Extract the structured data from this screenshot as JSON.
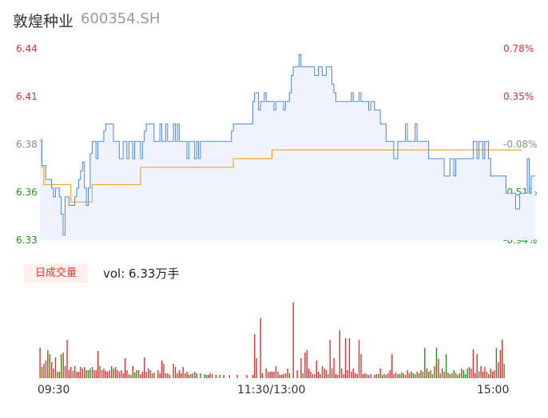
{
  "header": {
    "name": "敦煌种业",
    "code": "600354.SH"
  },
  "price_axis": [
    {
      "price": "6.44",
      "pct": "0.78%",
      "dir": "up"
    },
    {
      "price": "6.41",
      "pct": "0.35%",
      "dir": "up"
    },
    {
      "price": "6.38",
      "pct": "-0.08%",
      "dir": "flat"
    },
    {
      "price": "6.36",
      "pct": "-0.51%",
      "dir": "down"
    },
    {
      "price": "6.33",
      "pct": "-0.94%",
      "dir": "down"
    }
  ],
  "volume": {
    "tag": "日成交量",
    "text": "vol: 6.33万手"
  },
  "time_axis": [
    "09:30",
    "11:30/13:00",
    "15:00"
  ],
  "colors": {
    "price_line": "#4d86e8",
    "avg_line": "#f0a82a",
    "up": "#e03131",
    "down": "#1a9b1a",
    "area": "#eef3fd"
  },
  "chart_data": {
    "type": "line",
    "ylim": [
      6.33,
      6.44
    ],
    "x_points": 241,
    "price_series": [
      6.387,
      6.373,
      6.373,
      6.365,
      6.365,
      6.365,
      6.36,
      6.355,
      6.36,
      6.36,
      6.355,
      6.345,
      6.333,
      6.355,
      6.355,
      6.35,
      6.35,
      6.35,
      6.355,
      6.36,
      6.365,
      6.37,
      6.375,
      6.36,
      6.35,
      6.36,
      6.38,
      6.387,
      6.387,
      6.377,
      6.387,
      6.387,
      6.387,
      6.393,
      6.397,
      6.397,
      6.397,
      6.397,
      6.387,
      6.387,
      6.387,
      6.377,
      6.377,
      6.387,
      6.387,
      6.377,
      6.387,
      6.387,
      6.377,
      6.387,
      6.387,
      6.387,
      6.377,
      6.387,
      6.393,
      6.397,
      6.397,
      6.397,
      6.397,
      6.387,
      6.387,
      6.387,
      6.397,
      6.387,
      6.387,
      6.397,
      6.387,
      6.387,
      6.387,
      6.397,
      6.387,
      6.397,
      6.387,
      6.387,
      6.387,
      6.387,
      6.377,
      6.387,
      6.387,
      6.387,
      6.377,
      6.387,
      6.377,
      6.387,
      6.387,
      6.387,
      6.387,
      6.387,
      6.387,
      6.387,
      6.387,
      6.387,
      6.387,
      6.387,
      6.387,
      6.387,
      6.387,
      6.387,
      6.387,
      6.393,
      6.397,
      6.397,
      6.397,
      6.397,
      6.397,
      6.397,
      6.397,
      6.397,
      6.397,
      6.397,
      6.41,
      6.415,
      6.415,
      6.405,
      6.41,
      6.41,
      6.415,
      6.41,
      6.41,
      6.41,
      6.41,
      6.405,
      6.41,
      6.41,
      6.41,
      6.41,
      6.405,
      6.41,
      6.41,
      6.415,
      6.425,
      6.43,
      6.43,
      6.43,
      6.437,
      6.43,
      6.43,
      6.43,
      6.43,
      6.43,
      6.43,
      6.43,
      6.425,
      6.425,
      6.43,
      6.43,
      6.425,
      6.425,
      6.43,
      6.43,
      6.43,
      6.42,
      6.415,
      6.41,
      6.41,
      6.41,
      6.41,
      6.41,
      6.41,
      6.41,
      6.41,
      6.415,
      6.41,
      6.41,
      6.41,
      6.415,
      6.41,
      6.41,
      6.41,
      6.41,
      6.405,
      6.41,
      6.41,
      6.405,
      6.405,
      6.405,
      6.397,
      6.397,
      6.397,
      6.387,
      6.387,
      6.387,
      6.387,
      6.377,
      6.377,
      6.387,
      6.387,
      6.387,
      6.387,
      6.397,
      6.387,
      6.387,
      6.387,
      6.387,
      6.397,
      6.387,
      6.387,
      6.387,
      6.387,
      6.387,
      6.387,
      6.377,
      6.377,
      6.377,
      6.377,
      6.377,
      6.377,
      6.377,
      6.377,
      6.367,
      6.367,
      6.367,
      6.377,
      6.377,
      6.367,
      6.377,
      6.377,
      6.377,
      6.377,
      6.377,
      6.377,
      6.377,
      6.377,
      6.377,
      6.387,
      6.387,
      6.377,
      6.387,
      6.387,
      6.377,
      6.387,
      6.387,
      6.377,
      6.367,
      6.367,
      6.367,
      6.367,
      6.367,
      6.367,
      6.367,
      6.367,
      6.357,
      6.357,
      6.357,
      6.357,
      6.357,
      6.348,
      6.348,
      6.357,
      6.357,
      6.357,
      6.357,
      6.377,
      6.357,
      6.367,
      6.367,
      6.367
    ],
    "avg_series": [
      6.388,
      6.372,
      6.362,
      6.362,
      6.362,
      6.362,
      6.362,
      6.362,
      6.362,
      6.362,
      6.362,
      6.362,
      6.362,
      6.362,
      6.362,
      6.362,
      6.352,
      6.352,
      6.352,
      6.352,
      6.352,
      6.352,
      6.352,
      6.352,
      6.352,
      6.352,
      6.352,
      6.362,
      6.362,
      6.362,
      6.362,
      6.362,
      6.362,
      6.362,
      6.362,
      6.362,
      6.362,
      6.362,
      6.362,
      6.362,
      6.362,
      6.362,
      6.362,
      6.362,
      6.362,
      6.362,
      6.362,
      6.362,
      6.362,
      6.362,
      6.362,
      6.362,
      6.372,
      6.372,
      6.372,
      6.372,
      6.372,
      6.372,
      6.372,
      6.372,
      6.372,
      6.372,
      6.372,
      6.372,
      6.372,
      6.372,
      6.372,
      6.372,
      6.372,
      6.372,
      6.372,
      6.372,
      6.372,
      6.372,
      6.372,
      6.372,
      6.372,
      6.372,
      6.372,
      6.372,
      6.372,
      6.372,
      6.372,
      6.372,
      6.372,
      6.372,
      6.372,
      6.372,
      6.372,
      6.372,
      6.372,
      6.372,
      6.372,
      6.372,
      6.372,
      6.372,
      6.372,
      6.372,
      6.372,
      6.372,
      6.377,
      6.377,
      6.377,
      6.377,
      6.377,
      6.377,
      6.377,
      6.377,
      6.377,
      6.377,
      6.377,
      6.377,
      6.377,
      6.377,
      6.377,
      6.377,
      6.377,
      6.377,
      6.377,
      6.377,
      6.382,
      6.382,
      6.382,
      6.382,
      6.382,
      6.382,
      6.382,
      6.382,
      6.382,
      6.382,
      6.382,
      6.382,
      6.382,
      6.382,
      6.382,
      6.382,
      6.382,
      6.382,
      6.382,
      6.382,
      6.382,
      6.382,
      6.382,
      6.382,
      6.382,
      6.382,
      6.382,
      6.382,
      6.382,
      6.382,
      6.382,
      6.382,
      6.382,
      6.382,
      6.382,
      6.382,
      6.382,
      6.382,
      6.382,
      6.382,
      6.382,
      6.382,
      6.382,
      6.382,
      6.382,
      6.382,
      6.382,
      6.382,
      6.382,
      6.382,
      6.382,
      6.382,
      6.382,
      6.382,
      6.382,
      6.382,
      6.382,
      6.382,
      6.382,
      6.382,
      6.382,
      6.382,
      6.382,
      6.382,
      6.382,
      6.382,
      6.382,
      6.382,
      6.382,
      6.382,
      6.382,
      6.382,
      6.382,
      6.382,
      6.382,
      6.382,
      6.382,
      6.382,
      6.382,
      6.382,
      6.382,
      6.382,
      6.382,
      6.382,
      6.382,
      6.382,
      6.382,
      6.382,
      6.382,
      6.382,
      6.382,
      6.382,
      6.382,
      6.382,
      6.382,
      6.382,
      6.382,
      6.382,
      6.382,
      6.382,
      6.382,
      6.382,
      6.382,
      6.382,
      6.382,
      6.382,
      6.382,
      6.382,
      6.382,
      6.382,
      6.382,
      6.382,
      6.382,
      6.382,
      6.382,
      6.382,
      6.382,
      6.382,
      6.382,
      6.382,
      6.382,
      6.382,
      6.382,
      6.382,
      6.382,
      6.382,
      6.382,
      6.382,
      6.382,
      6.382
    ],
    "volume_bars": [
      [
        0,
        38,
        "up"
      ],
      [
        2,
        18,
        "up"
      ],
      [
        3,
        22,
        "up"
      ],
      [
        4,
        35,
        "up"
      ],
      [
        5,
        30,
        "down"
      ],
      [
        6,
        20,
        "up"
      ],
      [
        7,
        12,
        "up"
      ],
      [
        8,
        26,
        "up"
      ],
      [
        10,
        8,
        "up"
      ],
      [
        11,
        30,
        "down"
      ],
      [
        12,
        32,
        "up"
      ],
      [
        13,
        15,
        "up"
      ],
      [
        14,
        48,
        "up"
      ],
      [
        15,
        10,
        "up"
      ],
      [
        16,
        14,
        "up"
      ],
      [
        18,
        15,
        "up"
      ],
      [
        19,
        8,
        "up"
      ],
      [
        20,
        8,
        "up"
      ],
      [
        21,
        14,
        "up"
      ],
      [
        22,
        12,
        "up"
      ],
      [
        23,
        14,
        "up"
      ],
      [
        24,
        10,
        "up"
      ],
      [
        25,
        10,
        "down"
      ],
      [
        27,
        14,
        "up"
      ],
      [
        28,
        10,
        "up"
      ],
      [
        29,
        10,
        "up"
      ],
      [
        30,
        34,
        "up"
      ],
      [
        31,
        15,
        "up"
      ],
      [
        32,
        10,
        "up"
      ],
      [
        33,
        12,
        "up"
      ],
      [
        34,
        9,
        "up"
      ],
      [
        35,
        8,
        "up"
      ],
      [
        36,
        10,
        "up"
      ],
      [
        37,
        15,
        "up"
      ],
      [
        38,
        12,
        "down"
      ],
      [
        39,
        14,
        "up"
      ],
      [
        40,
        10,
        "up"
      ],
      [
        41,
        8,
        "up"
      ],
      [
        42,
        10,
        "up"
      ],
      [
        43,
        6,
        "up"
      ],
      [
        44,
        25,
        "up"
      ],
      [
        45,
        10,
        "up"
      ],
      [
        46,
        5,
        "up"
      ],
      [
        47,
        4,
        "down"
      ],
      [
        48,
        15,
        "up"
      ],
      [
        50,
        10,
        "up"
      ],
      [
        51,
        10,
        "down"
      ],
      [
        52,
        5,
        "up"
      ],
      [
        53,
        8,
        "up"
      ],
      [
        54,
        26,
        "up"
      ],
      [
        55,
        8,
        "up"
      ],
      [
        56,
        12,
        "up"
      ],
      [
        57,
        10,
        "up"
      ],
      [
        59,
        7,
        "up"
      ],
      [
        61,
        10,
        "up"
      ],
      [
        62,
        6,
        "up"
      ],
      [
        63,
        22,
        "up"
      ],
      [
        64,
        18,
        "up"
      ],
      [
        65,
        6,
        "up"
      ],
      [
        67,
        4,
        "up"
      ],
      [
        69,
        18,
        "up"
      ],
      [
        70,
        14,
        "down"
      ],
      [
        71,
        6,
        "up"
      ],
      [
        72,
        10,
        "up"
      ],
      [
        73,
        6,
        "up"
      ],
      [
        74,
        14,
        "up"
      ],
      [
        75,
        6,
        "up"
      ],
      [
        76,
        8,
        "up"
      ],
      [
        77,
        4,
        "up"
      ],
      [
        79,
        6,
        "up"
      ],
      [
        80,
        8,
        "up"
      ],
      [
        83,
        6,
        "up"
      ],
      [
        85,
        5,
        "down"
      ],
      [
        87,
        4,
        "up"
      ],
      [
        88,
        6,
        "up"
      ],
      [
        89,
        5,
        "up"
      ],
      [
        91,
        4,
        "up"
      ],
      [
        93,
        4,
        "up"
      ],
      [
        95,
        4,
        "up"
      ],
      [
        98,
        4,
        "up"
      ],
      [
        102,
        4,
        "up"
      ],
      [
        107,
        4,
        "up"
      ],
      [
        110,
        4,
        "up"
      ],
      [
        111,
        55,
        "up"
      ],
      [
        112,
        25,
        "up"
      ],
      [
        114,
        75,
        "up"
      ],
      [
        115,
        6,
        "up"
      ],
      [
        117,
        12,
        "up"
      ],
      [
        118,
        8,
        "up"
      ],
      [
        119,
        8,
        "up"
      ],
      [
        120,
        8,
        "up"
      ],
      [
        121,
        8,
        "up"
      ],
      [
        122,
        15,
        "up"
      ],
      [
        123,
        8,
        "up"
      ],
      [
        124,
        4,
        "up"
      ],
      [
        125,
        4,
        "up"
      ],
      [
        126,
        5,
        "up"
      ],
      [
        127,
        6,
        "up"
      ],
      [
        128,
        12,
        "up"
      ],
      [
        131,
        95,
        "up"
      ],
      [
        133,
        10,
        "up"
      ],
      [
        135,
        25,
        "up"
      ],
      [
        136,
        6,
        "down"
      ],
      [
        137,
        32,
        "up"
      ],
      [
        138,
        35,
        "up"
      ],
      [
        139,
        12,
        "up"
      ],
      [
        140,
        8,
        "up"
      ],
      [
        141,
        5,
        "up"
      ],
      [
        142,
        5,
        "up"
      ],
      [
        143,
        22,
        "up"
      ],
      [
        144,
        8,
        "up"
      ],
      [
        145,
        5,
        "up"
      ],
      [
        146,
        15,
        "up"
      ],
      [
        147,
        12,
        "up"
      ],
      [
        148,
        10,
        "up"
      ],
      [
        150,
        48,
        "up"
      ],
      [
        151,
        12,
        "up"
      ],
      [
        152,
        25,
        "up"
      ],
      [
        153,
        5,
        "up"
      ],
      [
        154,
        4,
        "up"
      ],
      [
        155,
        60,
        "up"
      ],
      [
        156,
        12,
        "up"
      ],
      [
        157,
        5,
        "up"
      ],
      [
        158,
        50,
        "up"
      ],
      [
        159,
        10,
        "up"
      ],
      [
        160,
        50,
        "up"
      ],
      [
        161,
        8,
        "up"
      ],
      [
        162,
        12,
        "up"
      ],
      [
        163,
        6,
        "up"
      ],
      [
        164,
        5,
        "up"
      ],
      [
        165,
        48,
        "up"
      ],
      [
        166,
        30,
        "up"
      ],
      [
        167,
        5,
        "up"
      ],
      [
        168,
        6,
        "up"
      ],
      [
        170,
        4,
        "up"
      ],
      [
        171,
        5,
        "up"
      ],
      [
        173,
        4,
        "up"
      ],
      [
        174,
        5,
        "up"
      ],
      [
        175,
        5,
        "down"
      ],
      [
        176,
        12,
        "up"
      ],
      [
        178,
        5,
        "up"
      ],
      [
        179,
        4,
        "up"
      ],
      [
        180,
        6,
        "up"
      ],
      [
        181,
        10,
        "up"
      ],
      [
        182,
        30,
        "up"
      ],
      [
        183,
        5,
        "up"
      ],
      [
        184,
        7,
        "up"
      ],
      [
        186,
        5,
        "up"
      ],
      [
        188,
        6,
        "up"
      ],
      [
        189,
        4,
        "up"
      ],
      [
        190,
        10,
        "up"
      ],
      [
        191,
        6,
        "up"
      ],
      [
        193,
        6,
        "up"
      ],
      [
        195,
        8,
        "up"
      ],
      [
        197,
        10,
        "up"
      ],
      [
        198,
        8,
        "up"
      ],
      [
        200,
        12,
        "up"
      ],
      [
        202,
        10,
        "up"
      ],
      [
        204,
        15,
        "up"
      ],
      [
        206,
        24,
        "up"
      ],
      [
        208,
        12,
        "up"
      ],
      [
        209,
        8,
        "up"
      ],
      [
        211,
        7,
        "up"
      ],
      [
        213,
        6,
        "up"
      ],
      [
        215,
        6,
        "up"
      ],
      [
        218,
        12,
        "up"
      ],
      [
        220,
        5,
        "down"
      ],
      [
        222,
        14,
        "up"
      ],
      [
        223,
        12,
        "up"
      ],
      [
        224,
        36,
        "up"
      ],
      [
        225,
        6,
        "up"
      ],
      [
        226,
        30,
        "up"
      ],
      [
        228,
        15,
        "up"
      ],
      [
        229,
        8,
        "up"
      ],
      [
        230,
        14,
        "up"
      ],
      [
        231,
        8,
        "up"
      ],
      [
        233,
        12,
        "up"
      ],
      [
        234,
        8,
        "up"
      ],
      [
        235,
        10,
        "up"
      ],
      [
        237,
        20,
        "up"
      ],
      [
        238,
        35,
        "up"
      ],
      [
        239,
        48,
        "up"
      ],
      [
        240,
        18,
        "down"
      ],
      [
        1,
        14,
        "down"
      ],
      [
        9,
        8,
        "down"
      ],
      [
        17,
        9,
        "down"
      ],
      [
        26,
        12,
        "down"
      ],
      [
        49,
        7,
        "down"
      ],
      [
        58,
        6,
        "down"
      ],
      [
        66,
        6,
        "down"
      ],
      [
        78,
        5,
        "down"
      ],
      [
        81,
        6,
        "down"
      ],
      [
        86,
        4,
        "down"
      ],
      [
        129,
        6,
        "down"
      ],
      [
        149,
        5,
        "down"
      ],
      [
        169,
        5,
        "down"
      ],
      [
        177,
        4,
        "down"
      ],
      [
        185,
        5,
        "down"
      ],
      [
        187,
        7,
        "down"
      ],
      [
        192,
        8,
        "down"
      ],
      [
        194,
        5,
        "down"
      ],
      [
        196,
        6,
        "down"
      ],
      [
        199,
        38,
        "down"
      ],
      [
        201,
        8,
        "down"
      ],
      [
        203,
        5,
        "down"
      ],
      [
        205,
        38,
        "down"
      ],
      [
        207,
        6,
        "down"
      ],
      [
        210,
        30,
        "down"
      ],
      [
        212,
        5,
        "down"
      ],
      [
        214,
        10,
        "down"
      ],
      [
        216,
        4,
        "down"
      ],
      [
        217,
        6,
        "down"
      ],
      [
        219,
        10,
        "down"
      ],
      [
        221,
        12,
        "down"
      ],
      [
        227,
        8,
        "down"
      ],
      [
        232,
        5,
        "down"
      ],
      [
        236,
        38,
        "down"
      ]
    ]
  }
}
